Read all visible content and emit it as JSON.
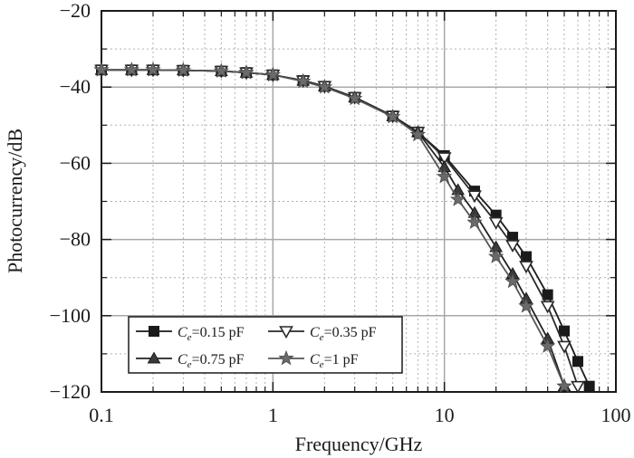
{
  "chart_data": {
    "type": "line",
    "xlabel": "Frequency/GHz",
    "ylabel": "Photocurrency/dB",
    "xscale": "log",
    "xlim": [
      0.1,
      100
    ],
    "ylim": [
      -120,
      -20
    ],
    "xticks": [
      0.1,
      1,
      10,
      100
    ],
    "xtick_labels": [
      "0.1",
      "1",
      "10",
      "100"
    ],
    "yticks": [
      -120,
      -100,
      -80,
      -60,
      -40,
      -20
    ],
    "ytick_labels": [
      "−120",
      "−100",
      "−80",
      "−60",
      "−40",
      "−20"
    ],
    "grid": true,
    "legend_position": "bottom-left",
    "series": [
      {
        "name": "Ce=0.15 pF",
        "name_symbol": "C",
        "name_subscript": "e",
        "name_value": "=0.15 pF",
        "marker": "filled-square",
        "x": [
          0.1,
          0.15,
          0.2,
          0.3,
          0.5,
          0.7,
          1.0,
          1.5,
          2.0,
          3.0,
          5.0,
          7.0,
          10.0,
          15.0,
          20.0,
          25.0,
          30.0,
          40.0,
          50.0,
          60.0,
          70.0
        ],
        "y": [
          -35.5,
          -35.5,
          -35.5,
          -35.6,
          -35.8,
          -36.2,
          -36.8,
          -38.3,
          -39.8,
          -42.7,
          -47.6,
          -51.8,
          -58.0,
          -67.3,
          -73.6,
          -79.4,
          -84.5,
          -94.5,
          -104.0,
          -112.0,
          -118.5
        ]
      },
      {
        "name": "Ce=0.35 pF",
        "name_symbol": "C",
        "name_subscript": "e",
        "name_value": "=0.35 pF",
        "marker": "open-triangle-down",
        "x": [
          0.1,
          0.15,
          0.2,
          0.3,
          0.5,
          0.7,
          1.0,
          1.5,
          2.0,
          3.0,
          5.0,
          7.0,
          10.0,
          15.0,
          20.0,
          25.0,
          30.0,
          40.0,
          50.0,
          60.0
        ],
        "y": [
          -35.5,
          -35.5,
          -35.5,
          -35.6,
          -35.8,
          -36.2,
          -36.8,
          -38.3,
          -39.8,
          -42.7,
          -47.6,
          -51.8,
          -58.5,
          -68.5,
          -75.5,
          -81.5,
          -87.0,
          -97.5,
          -108.0,
          -118.5
        ]
      },
      {
        "name": "Ce=0.75 pF",
        "name_symbol": "C",
        "name_subscript": "e",
        "name_value": "=0.75 pF",
        "marker": "filled-triangle-up",
        "x": [
          0.1,
          0.15,
          0.2,
          0.3,
          0.5,
          0.7,
          1.0,
          1.5,
          2.0,
          3.0,
          5.0,
          7.0,
          10.0,
          12.0,
          15.0,
          20.0,
          25.0,
          30.0,
          40.0,
          50.0
        ],
        "y": [
          -35.5,
          -35.5,
          -35.5,
          -35.6,
          -35.8,
          -36.2,
          -36.8,
          -38.3,
          -39.8,
          -42.7,
          -47.6,
          -51.8,
          -61.0,
          -67.0,
          -73.0,
          -82.0,
          -89.0,
          -95.5,
          -106.0,
          -118.5
        ]
      },
      {
        "name": "Ce=1 pF",
        "name_symbol": "C",
        "name_subscript": "e",
        "name_value": "=1 pF",
        "marker": "filled-star",
        "x": [
          0.1,
          0.15,
          0.2,
          0.3,
          0.5,
          0.7,
          1.0,
          1.5,
          2.0,
          3.0,
          5.0,
          7.0,
          10.0,
          12.0,
          15.0,
          20.0,
          25.0,
          30.0,
          40.0,
          50.0
        ],
        "y": [
          -35.5,
          -35.5,
          -35.5,
          -35.6,
          -35.8,
          -36.2,
          -36.8,
          -38.5,
          -40.0,
          -43.0,
          -47.8,
          -52.5,
          -63.5,
          -69.5,
          -75.5,
          -84.5,
          -91.0,
          -97.5,
          -108.0,
          -118.5
        ]
      }
    ]
  }
}
